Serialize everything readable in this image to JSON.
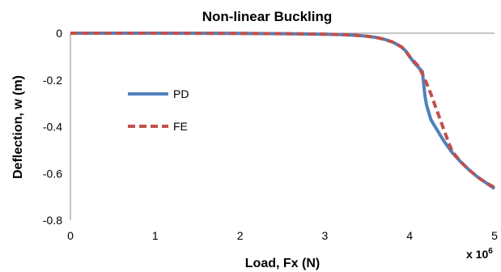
{
  "chart_data": {
    "type": "line",
    "title": "Non-linear Buckling",
    "xlabel": "Load, Fx (N)",
    "ylabel": "Deflection, w (m)",
    "x_multiplier_base": "x 10",
    "x_multiplier_exp": "6",
    "xlim": [
      0,
      5
    ],
    "ylim": [
      -0.8,
      0
    ],
    "x_ticks": [
      "0",
      "1",
      "2",
      "3",
      "4",
      "5"
    ],
    "y_ticks": [
      "0",
      "-0.2",
      "-0.4",
      "-0.6",
      "-0.8"
    ],
    "grid": false,
    "legend_position": "left",
    "series": [
      {
        "name": "PD",
        "color": "#4f81bd",
        "style": "solid",
        "x": [
          0,
          1,
          2,
          2.5,
          3,
          3.2,
          3.4,
          3.5,
          3.6,
          3.7,
          3.8,
          3.9,
          3.95,
          4.0,
          4.05,
          4.1,
          4.15,
          4.18,
          4.2,
          4.25,
          4.3,
          4.4,
          4.5,
          4.55,
          4.6,
          4.7,
          4.8,
          4.9,
          5.0
        ],
        "y": [
          0,
          0,
          -0.001,
          -0.002,
          -0.004,
          -0.006,
          -0.01,
          -0.013,
          -0.018,
          -0.026,
          -0.038,
          -0.058,
          -0.075,
          -0.1,
          -0.125,
          -0.145,
          -0.165,
          -0.27,
          -0.31,
          -0.37,
          -0.4,
          -0.46,
          -0.51,
          -0.53,
          -0.55,
          -0.585,
          -0.615,
          -0.64,
          -0.665
        ]
      },
      {
        "name": "FE",
        "color": "#c0504d",
        "style": "dashed",
        "x": [
          0,
          1,
          2,
          2.5,
          3,
          3.2,
          3.4,
          3.5,
          3.6,
          3.7,
          3.8,
          3.9,
          3.95,
          4.0,
          4.05,
          4.1,
          4.15,
          4.2,
          4.25,
          4.3,
          4.35,
          4.4,
          4.45,
          4.5,
          4.6,
          4.7,
          4.8,
          4.9,
          5.0
        ],
        "y": [
          0,
          0,
          -0.001,
          -0.002,
          -0.004,
          -0.006,
          -0.01,
          -0.013,
          -0.018,
          -0.026,
          -0.038,
          -0.058,
          -0.075,
          -0.1,
          -0.12,
          -0.14,
          -0.175,
          -0.215,
          -0.26,
          -0.31,
          -0.36,
          -0.41,
          -0.46,
          -0.505,
          -0.55,
          -0.585,
          -0.615,
          -0.64,
          -0.66
        ]
      }
    ]
  }
}
